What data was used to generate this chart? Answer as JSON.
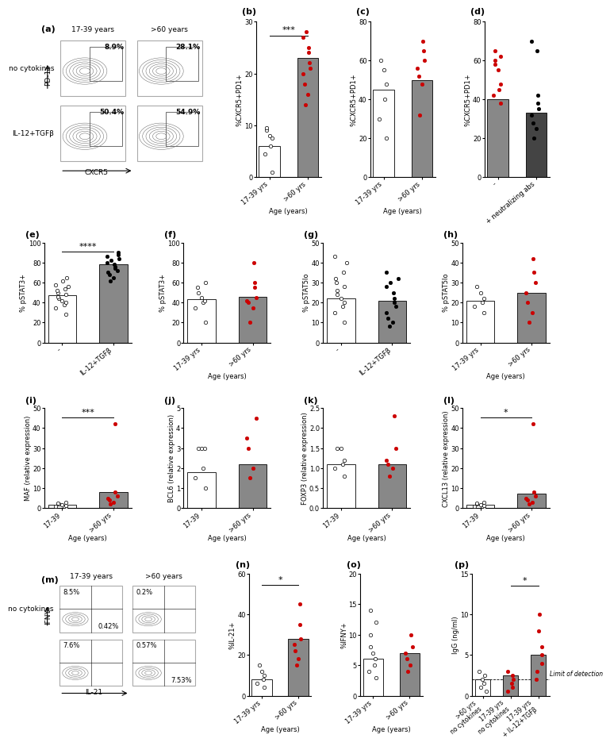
{
  "panel_b": {
    "bar_values": [
      6.0,
      23.0
    ],
    "bar_colors": [
      "white",
      "#888888"
    ],
    "dot_data": {
      "group1": [
        1.0,
        4.5,
        6.0,
        7.5,
        8.0,
        9.0,
        9.5
      ],
      "group2": [
        14.0,
        16.0,
        18.0,
        20.0,
        21.0,
        22.0,
        24.0,
        25.0,
        27.0,
        28.0
      ]
    },
    "dot_colors": {
      "group1": "white",
      "group2": "#cc0000"
    },
    "xtick_labels": [
      "17-39 yrs",
      ">60 yrs"
    ],
    "ylabel": "%CXCR5+PD1+",
    "ylim": [
      0,
      30
    ],
    "yticks": [
      0,
      10,
      20,
      30
    ],
    "sig": "***",
    "age_xlabel": true,
    "label": "(b)"
  },
  "panel_c": {
    "bar_values": [
      45.0,
      50.0
    ],
    "bar_colors": [
      "white",
      "#888888"
    ],
    "dot_data": {
      "group1": [
        20.0,
        30.0,
        40.0,
        48.0,
        55.0,
        60.0
      ],
      "group2": [
        32.0,
        48.0,
        52.0,
        56.0,
        60.0,
        65.0,
        70.0
      ]
    },
    "dot_colors": {
      "group1": "white",
      "group2": "#cc0000"
    },
    "xtick_labels": [
      "17-39 yrs",
      ">60 yrs"
    ],
    "ylabel": "%CXCR5+PD1+",
    "ylim": [
      0,
      80
    ],
    "yticks": [
      0,
      20,
      40,
      60,
      80
    ],
    "age_xlabel": true,
    "label": "(c)"
  },
  "panel_d": {
    "bar_values": [
      40.0,
      33.0
    ],
    "bar_colors": [
      "#888888",
      "#444444"
    ],
    "dot_data": {
      "group1": [
        38.0,
        42.0,
        45.0,
        48.0,
        55.0,
        58.0,
        60.0,
        62.0,
        65.0
      ],
      "group2": [
        20.0,
        25.0,
        28.0,
        32.0,
        35.0,
        38.0,
        42.0,
        65.0,
        70.0
      ]
    },
    "dot_colors": {
      "group1": "#cc0000",
      "group2": "black"
    },
    "xtick_labels": [
      "-",
      "+ neutralizing abs"
    ],
    "ylabel": "%CXCR5+PD1+",
    "ylim": [
      0,
      80
    ],
    "yticks": [
      0,
      20,
      40,
      60,
      80
    ],
    "age_xlabel": false,
    "label": "(d)"
  },
  "panel_e": {
    "bar_values": [
      47.0,
      78.0
    ],
    "bar_colors": [
      "white",
      "#888888"
    ],
    "dot_data": {
      "group1": [
        28.0,
        35.0,
        38.0,
        40.0,
        42.0,
        44.0,
        46.0,
        48.0,
        50.0,
        52.0,
        54.0,
        56.0,
        58.0,
        62.0,
        65.0
      ],
      "group2": [
        62.0,
        65.0,
        68.0,
        70.0,
        72.0,
        74.0,
        76.0,
        78.0,
        80.0,
        82.0,
        84.0,
        86.0,
        88.0,
        90.0
      ]
    },
    "dot_colors": {
      "group1": "white",
      "group2": "black"
    },
    "xtick_labels": [
      "-",
      "IL-12+TGFβ"
    ],
    "ylabel": "% pSTAT3+",
    "ylim": [
      0,
      100
    ],
    "yticks": [
      0,
      20,
      40,
      60,
      80,
      100
    ],
    "sig": "****",
    "age_xlabel": false,
    "label": "(e)"
  },
  "panel_f": {
    "bar_values": [
      43.0,
      46.0
    ],
    "bar_colors": [
      "white",
      "#888888"
    ],
    "dot_data": {
      "group1": [
        20.0,
        35.0,
        40.0,
        42.0,
        45.0,
        50.0,
        55.0,
        60.0
      ],
      "group2": [
        20.0,
        35.0,
        40.0,
        42.0,
        45.0,
        55.0,
        60.0,
        80.0
      ]
    },
    "dot_colors": {
      "group1": "white",
      "group2": "#cc0000"
    },
    "xtick_labels": [
      "17-39 yrs",
      ">60 yrs"
    ],
    "ylabel": "% pSTAT3+",
    "ylim": [
      0,
      100
    ],
    "yticks": [
      0,
      20,
      40,
      60,
      80,
      100
    ],
    "age_xlabel": true,
    "label": "(f)"
  },
  "panel_g": {
    "bar_values": [
      22.0,
      21.0
    ],
    "bar_colors": [
      "white",
      "#888888"
    ],
    "dot_data": {
      "group1": [
        10.0,
        15.0,
        18.0,
        20.0,
        22.0,
        24.0,
        26.0,
        28.0,
        30.0,
        32.0,
        35.0,
        40.0,
        43.0
      ],
      "group2": [
        8.0,
        10.0,
        12.0,
        15.0,
        18.0,
        20.0,
        22.0,
        25.0,
        28.0,
        30.0,
        32.0,
        35.0
      ]
    },
    "dot_colors": {
      "group1": "white",
      "group2": "black"
    },
    "xtick_labels": [
      "-",
      "IL-12+TGFβ"
    ],
    "ylabel": "% pSTAT5lo",
    "ylim": [
      0,
      50
    ],
    "yticks": [
      0,
      10,
      20,
      30,
      40,
      50
    ],
    "age_xlabel": false,
    "label": "(g)"
  },
  "panel_h": {
    "bar_values": [
      21.0,
      25.0
    ],
    "bar_colors": [
      "white",
      "#888888"
    ],
    "dot_data": {
      "group1": [
        15.0,
        18.0,
        20.0,
        22.0,
        25.0,
        28.0
      ],
      "group2": [
        10.0,
        15.0,
        20.0,
        25.0,
        30.0,
        35.0,
        42.0
      ]
    },
    "dot_colors": {
      "group1": "white",
      "group2": "#cc0000"
    },
    "xtick_labels": [
      "17-39 yrs",
      ">60 yrs"
    ],
    "ylabel": "% pSTAT5lo",
    "ylim": [
      0,
      50
    ],
    "yticks": [
      0,
      10,
      20,
      30,
      40,
      50
    ],
    "age_xlabel": true,
    "label": "(h)"
  },
  "panel_i": {
    "bar_values": [
      1.5,
      8.0
    ],
    "bar_colors": [
      "white",
      "#888888"
    ],
    "dot_data": {
      "group1": [
        0.5,
        0.8,
        1.0,
        1.2,
        1.5,
        2.0,
        2.5,
        3.0
      ],
      "group2": [
        2.0,
        3.0,
        4.0,
        5.0,
        6.0,
        8.0,
        42.0
      ]
    },
    "dot_colors": {
      "group1": "white",
      "group2": "#cc0000"
    },
    "xtick_labels": [
      "17-39",
      ">60 yrs"
    ],
    "ylabel": "MAF (relative expression)",
    "ylim": [
      0,
      50
    ],
    "yticks": [
      0,
      10,
      20,
      30,
      40,
      50
    ],
    "sig": "***",
    "age_xlabel": true,
    "label": "(i)"
  },
  "panel_j": {
    "bar_values": [
      1.8,
      2.2
    ],
    "bar_colors": [
      "white",
      "#888888"
    ],
    "dot_data": {
      "group1": [
        1.0,
        1.5,
        2.0,
        3.0,
        3.0,
        3.0
      ],
      "group2": [
        1.5,
        2.0,
        3.0,
        3.5,
        4.5
      ]
    },
    "dot_colors": {
      "group1": "white",
      "group2": "#cc0000"
    },
    "xtick_labels": [
      "17-39",
      ">60 yrs"
    ],
    "ylabel": "BCL6 (relative expression)",
    "ylim": [
      0,
      5
    ],
    "yticks": [
      0,
      1,
      2,
      3,
      4,
      5
    ],
    "age_xlabel": true,
    "label": "(j)"
  },
  "panel_k": {
    "bar_values": [
      1.1,
      1.1
    ],
    "bar_colors": [
      "white",
      "#888888"
    ],
    "dot_data": {
      "group1": [
        0.8,
        1.0,
        1.1,
        1.2,
        1.5,
        1.5
      ],
      "group2": [
        0.8,
        1.0,
        1.1,
        1.2,
        1.5,
        2.3
      ]
    },
    "dot_colors": {
      "group1": "white",
      "group2": "#cc0000"
    },
    "xtick_labels": [
      "17-39",
      ">60 yrs"
    ],
    "ylabel": "FOXP3 (relative expression)",
    "ylim": [
      0,
      2.5
    ],
    "yticks": [
      0,
      0.5,
      1.0,
      1.5,
      2.0,
      2.5
    ],
    "age_xlabel": true,
    "label": "(k)"
  },
  "panel_l": {
    "bar_values": [
      1.5,
      7.0
    ],
    "bar_colors": [
      "white",
      "#888888"
    ],
    "dot_data": {
      "group1": [
        0.5,
        0.8,
        1.0,
        1.2,
        1.5,
        2.0,
        2.5,
        3.0
      ],
      "group2": [
        2.0,
        3.0,
        4.0,
        5.0,
        6.0,
        8.0,
        42.0
      ]
    },
    "dot_colors": {
      "group1": "white",
      "group2": "#cc0000"
    },
    "xtick_labels": [
      "17-39",
      ">60 yrs"
    ],
    "ylabel": "CXCL13 (relative expression)",
    "ylim": [
      0,
      50
    ],
    "yticks": [
      0,
      10,
      20,
      30,
      40,
      50
    ],
    "sig": "*",
    "age_xlabel": true,
    "label": "(l)"
  },
  "panel_n": {
    "bar_values": [
      8.0,
      28.0
    ],
    "bar_colors": [
      "white",
      "#888888"
    ],
    "dot_data": {
      "group1": [
        4.0,
        6.0,
        8.0,
        10.0,
        12.0,
        15.0
      ],
      "group2": [
        15.0,
        18.0,
        22.0,
        25.0,
        28.0,
        35.0,
        45.0
      ]
    },
    "dot_colors": {
      "group1": "white",
      "group2": "#cc0000"
    },
    "xtick_labels": [
      "17-39 yrs",
      ">60 yrs"
    ],
    "ylabel": "%IL-21+",
    "ylim": [
      0,
      60
    ],
    "yticks": [
      0,
      20,
      40,
      60
    ],
    "sig": "*",
    "age_xlabel": true,
    "label": "(n)"
  },
  "panel_o": {
    "bar_values": [
      6.0,
      7.0
    ],
    "bar_colors": [
      "white",
      "#888888"
    ],
    "dot_data": {
      "group1": [
        3.0,
        4.0,
        5.0,
        6.0,
        7.0,
        8.0,
        10.0,
        12.0,
        14.0
      ],
      "group2": [
        4.0,
        5.0,
        6.0,
        7.0,
        8.0,
        10.0
      ]
    },
    "dot_colors": {
      "group1": "white",
      "group2": "#cc0000"
    },
    "xtick_labels": [
      "17-39 yrs",
      ">60 yrs"
    ],
    "ylabel": "%IFNY+",
    "ylim": [
      0,
      20
    ],
    "yticks": [
      0,
      5,
      10,
      15,
      20
    ],
    "age_xlabel": true,
    "label": "(o)"
  },
  "panel_p": {
    "bar_values": [
      2.0,
      2.5,
      5.0
    ],
    "bar_colors": [
      "white",
      "#888888",
      "#888888"
    ],
    "dot_data": {
      "group1": [
        0.5,
        1.0,
        1.5,
        2.0,
        2.5,
        3.0
      ],
      "group2": [
        0.5,
        1.0,
        1.5,
        2.0,
        2.5,
        3.0
      ],
      "group3": [
        2.0,
        3.0,
        4.0,
        5.0,
        6.0,
        8.0,
        10.0
      ]
    },
    "dot_colors": {
      "group1": "white",
      "group2": "#cc0000",
      "group3": "#cc0000"
    },
    "xtick_labels": [
      ">60 yrs\nno cytokines",
      "17-39 yrs\nno cytokines",
      "17-39 yrs\n+ IL-12+TGFβ"
    ],
    "ylabel": "IgG (ng/ml)",
    "ylim": [
      0,
      15
    ],
    "yticks": [
      0,
      5,
      10,
      15
    ],
    "sig": "*",
    "age_xlabel": false,
    "label": "(p)",
    "limit_detection": 2.0
  },
  "flow_a": {
    "col_labels": [
      "17-39 years",
      ">60 years"
    ],
    "row_labels": [
      "no cytokines",
      "IL-12+TGFβ"
    ],
    "pct_labels": [
      [
        "8.9%",
        "28.1%"
      ],
      [
        "50.4%",
        "54.9%"
      ]
    ],
    "xaxis": "CXCR5",
    "yaxis": "PD-1",
    "panel_label": "(a)"
  },
  "flow_m": {
    "col_labels": [
      "17-39 years",
      ">60 years"
    ],
    "row_labels": [
      "no cytokines",
      ""
    ],
    "top_left_pcts": [
      [
        "8.5%",
        "7.6%"
      ],
      [
        "0.2%",
        "0.57%"
      ]
    ],
    "bot_right_pcts": [
      [
        "0.42%",
        "7.53%"
      ],
      [
        "",
        ""
      ]
    ],
    "xaxis": "IL-21",
    "yaxis": "IFNY",
    "panel_label": "(m)"
  },
  "background_color": "white",
  "font_size": 6.5,
  "label_fontsize": 8,
  "sig_fontsize": 8,
  "tick_fontsize": 6
}
